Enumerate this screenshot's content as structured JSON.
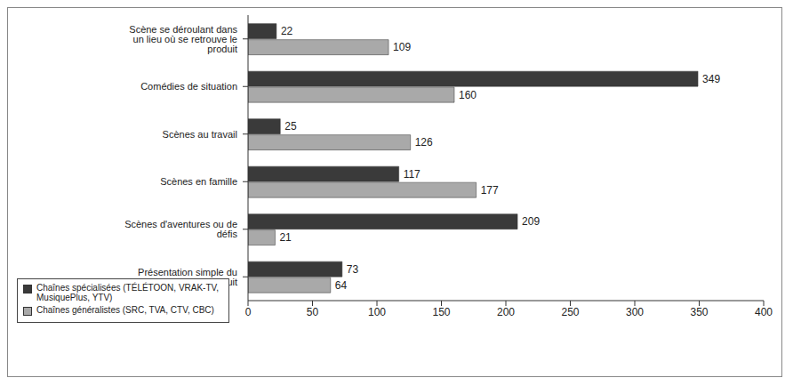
{
  "chart_data": {
    "type": "bar",
    "orientation": "horizontal",
    "categories": [
      "Scène se déroulant dans un lieu où se retrouve le produit",
      "Comédies de situation",
      "Scènes au travail",
      "Scènes en famille",
      "Scènes d'aventures ou de défis",
      "Présentation simple du produit"
    ],
    "series": [
      {
        "name": "Chaînes spécialisées (TÉLÉTOON, VRAK-TV, MusiquePlus, YTV)",
        "color": "#3a3a3a",
        "values": [
          22,
          349,
          25,
          117,
          209,
          73
        ]
      },
      {
        "name": "Chaînes généralistes (SRC, TVA, CTV, CBC)",
        "color": "#a9a9a9",
        "values": [
          109,
          160,
          126,
          177,
          21,
          64
        ]
      }
    ],
    "xlim": [
      0,
      400
    ],
    "xticks": [
      0,
      50,
      100,
      150,
      200,
      250,
      300,
      350,
      400
    ],
    "data_labels": true,
    "grid": false,
    "legend": "lower right"
  }
}
